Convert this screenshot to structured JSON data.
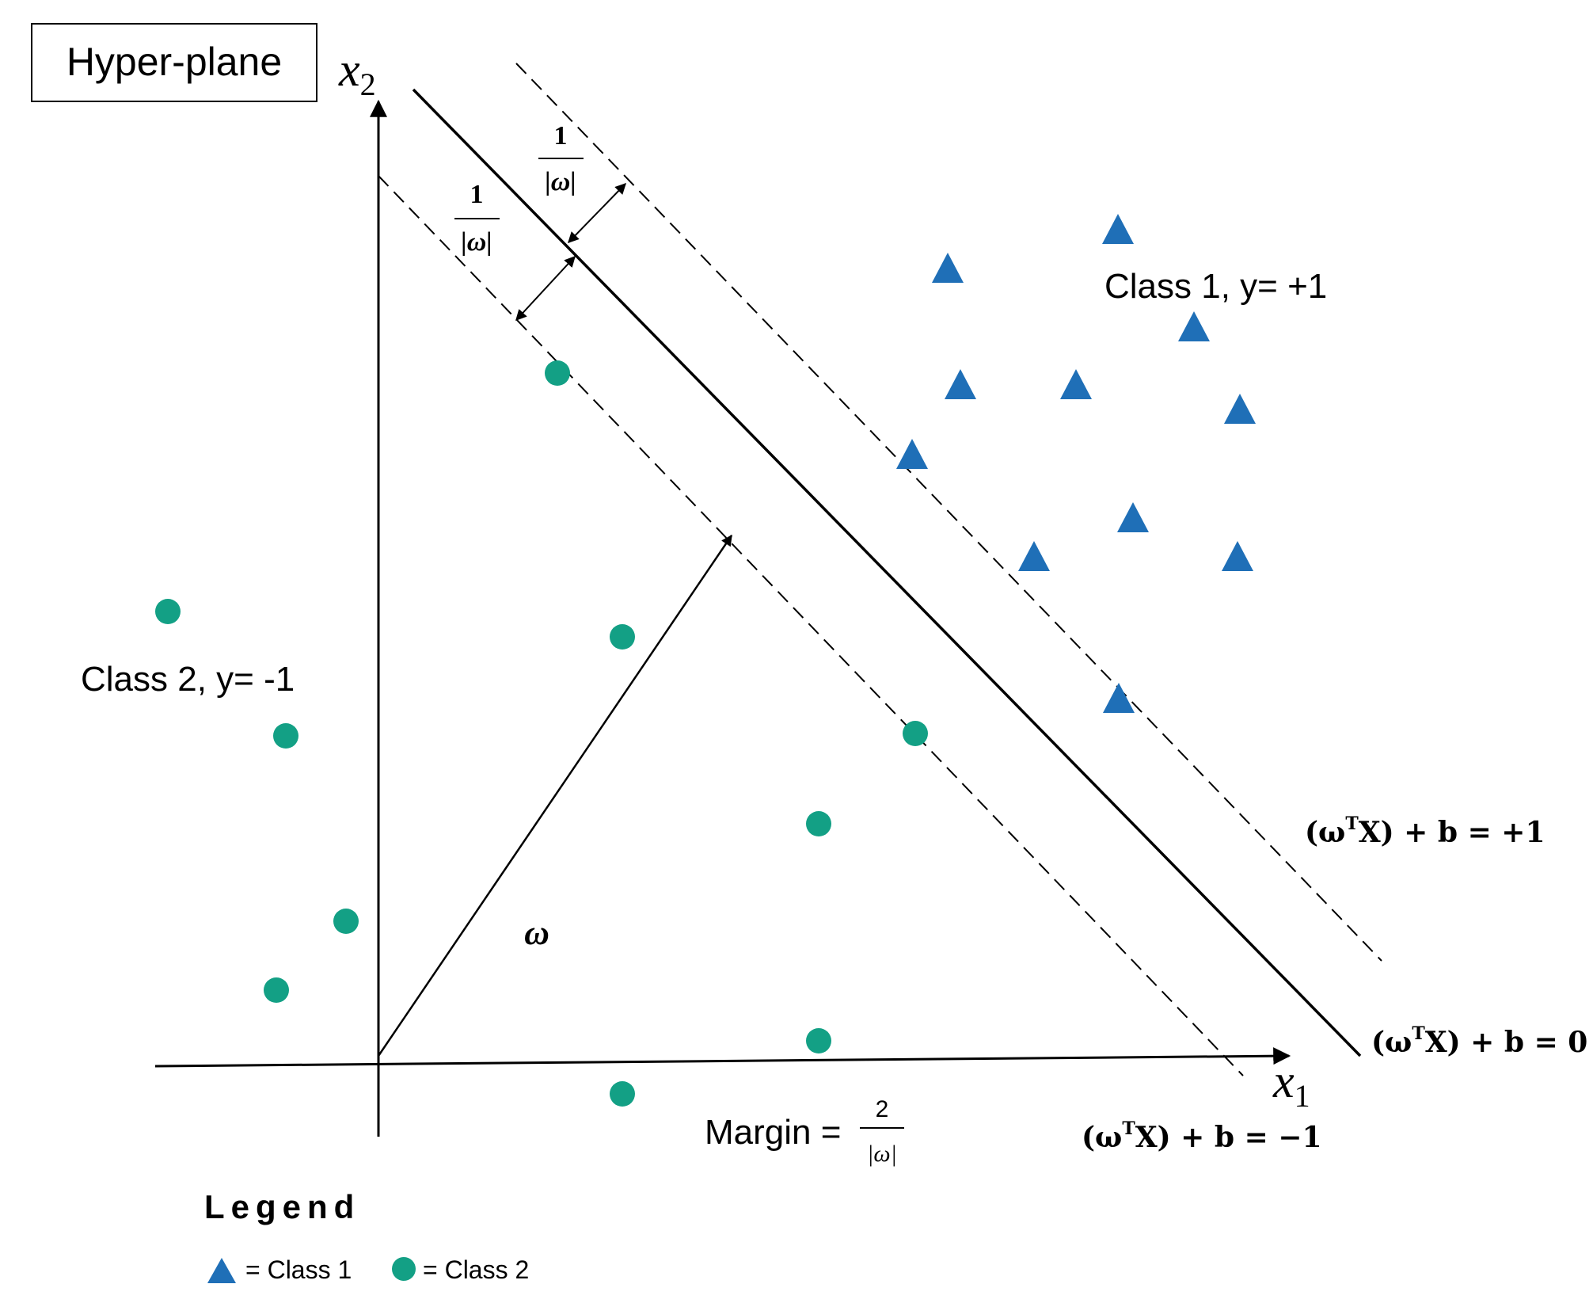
{
  "title": "Hyper-plane",
  "axes": {
    "x_symbol": "x",
    "x_sub": "1",
    "y_symbol": "x",
    "y_sub": "2"
  },
  "labels": {
    "class1": "Class 1, y= +1",
    "class2": "Class 2, y= -1",
    "weight_vector": "ω",
    "margin_prefix": "Margin =",
    "margin_numerator": "2",
    "margin_denominator": "|ω|",
    "half_margin_numerator": "1",
    "half_margin_denominator": "|ω|"
  },
  "equations": {
    "upper_open": "(ω",
    "upper_sup": "T",
    "upper_close": "X) + b = +1",
    "middle_open": "(ω",
    "middle_sup": "T",
    "middle_close": "X) + b = 0",
    "lower_open": "(ω",
    "lower_sup": "T",
    "lower_close": "X) + b = −1"
  },
  "legend": {
    "title": "Legend",
    "class1": "= Class 1",
    "class2": "= Class 2"
  },
  "colors": {
    "class1": "#1f6fb7",
    "class2": "#13a085",
    "line": "#000000"
  },
  "markers": {
    "class1_shape": "triangle",
    "class2_shape": "circle"
  }
}
